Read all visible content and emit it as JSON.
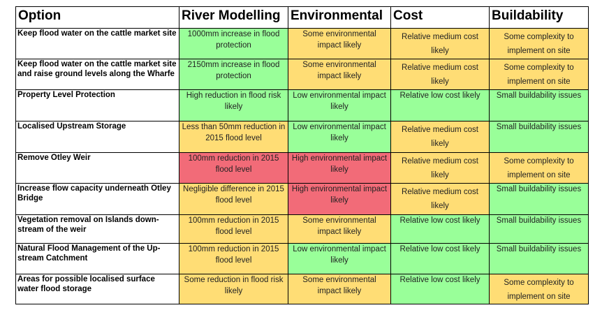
{
  "headers": [
    "Option",
    "River Modelling",
    "Environmental",
    "Cost",
    "Buildability"
  ],
  "rows": [
    {
      "option": "Keep flood water on the cattle market site",
      "river": "1000mm increase in flood protection",
      "env": "Some environmental impact likely",
      "cost": "Relative medium cost likely",
      "build": "Some complexity to implement on site"
    },
    {
      "option": "Keep flood water on the cattle market site and raise ground levels along the Wharfe",
      "river": "2150mm increase in flood protection",
      "env": "Some environmental impact likely",
      "cost": "Relative medium cost likely",
      "build": "Some complexity to implement on site"
    },
    {
      "option": "Property Level Protection",
      "river": "High reduction in flood risk likely",
      "env": "Low environmental impact likely",
      "cost": "Relative low cost likely",
      "build": "Small buildability issues"
    },
    {
      "option": "Localised Upstream Storage",
      "river": "Less than 50mm reduction in 2015 flood level",
      "env": "Low environmental impact likely",
      "cost": "Relative medium cost likely",
      "build": "Small buildability issues"
    },
    {
      "option": "Remove Otley Weir",
      "river": "100mm reduction in 2015 flood level",
      "env": "High environmental impact likely",
      "cost": "Relative medium cost likely",
      "build": "Some complexity to implement on site"
    },
    {
      "option": "Increase flow capacity underneath Otley Bridge",
      "river": "Negligible difference in 2015 flood level",
      "env": "High environmental impact likely",
      "cost": "Relative medium cost likely",
      "build": "Small buildability issues"
    },
    {
      "option": "Vegetation removal on Islands down-stream of the weir",
      "river": "100mm reduction in 2015 flood level",
      "env": "Some environmental impact likely",
      "cost": "Relative low cost likely",
      "build": "Small buildability issues"
    },
    {
      "option": "Natural Flood Management of the Up-stream Catchment",
      "river": "100mm reduction in 2015 flood level",
      "env": "Low environmental impact likely",
      "cost": "Relative low cost likely",
      "build": "Small buildability issues"
    },
    {
      "option": "Areas for possible localised surface water flood storage",
      "river": "Some reduction in flood risk likely",
      "env": "Some environmental impact likely",
      "cost": "Relative low cost likely",
      "build": "Some complexity to implement on site"
    }
  ],
  "rating_colors": {
    "favourable": "#99ff99",
    "moderate": "#ffdd75",
    "unfavourable": "#f26b78"
  }
}
